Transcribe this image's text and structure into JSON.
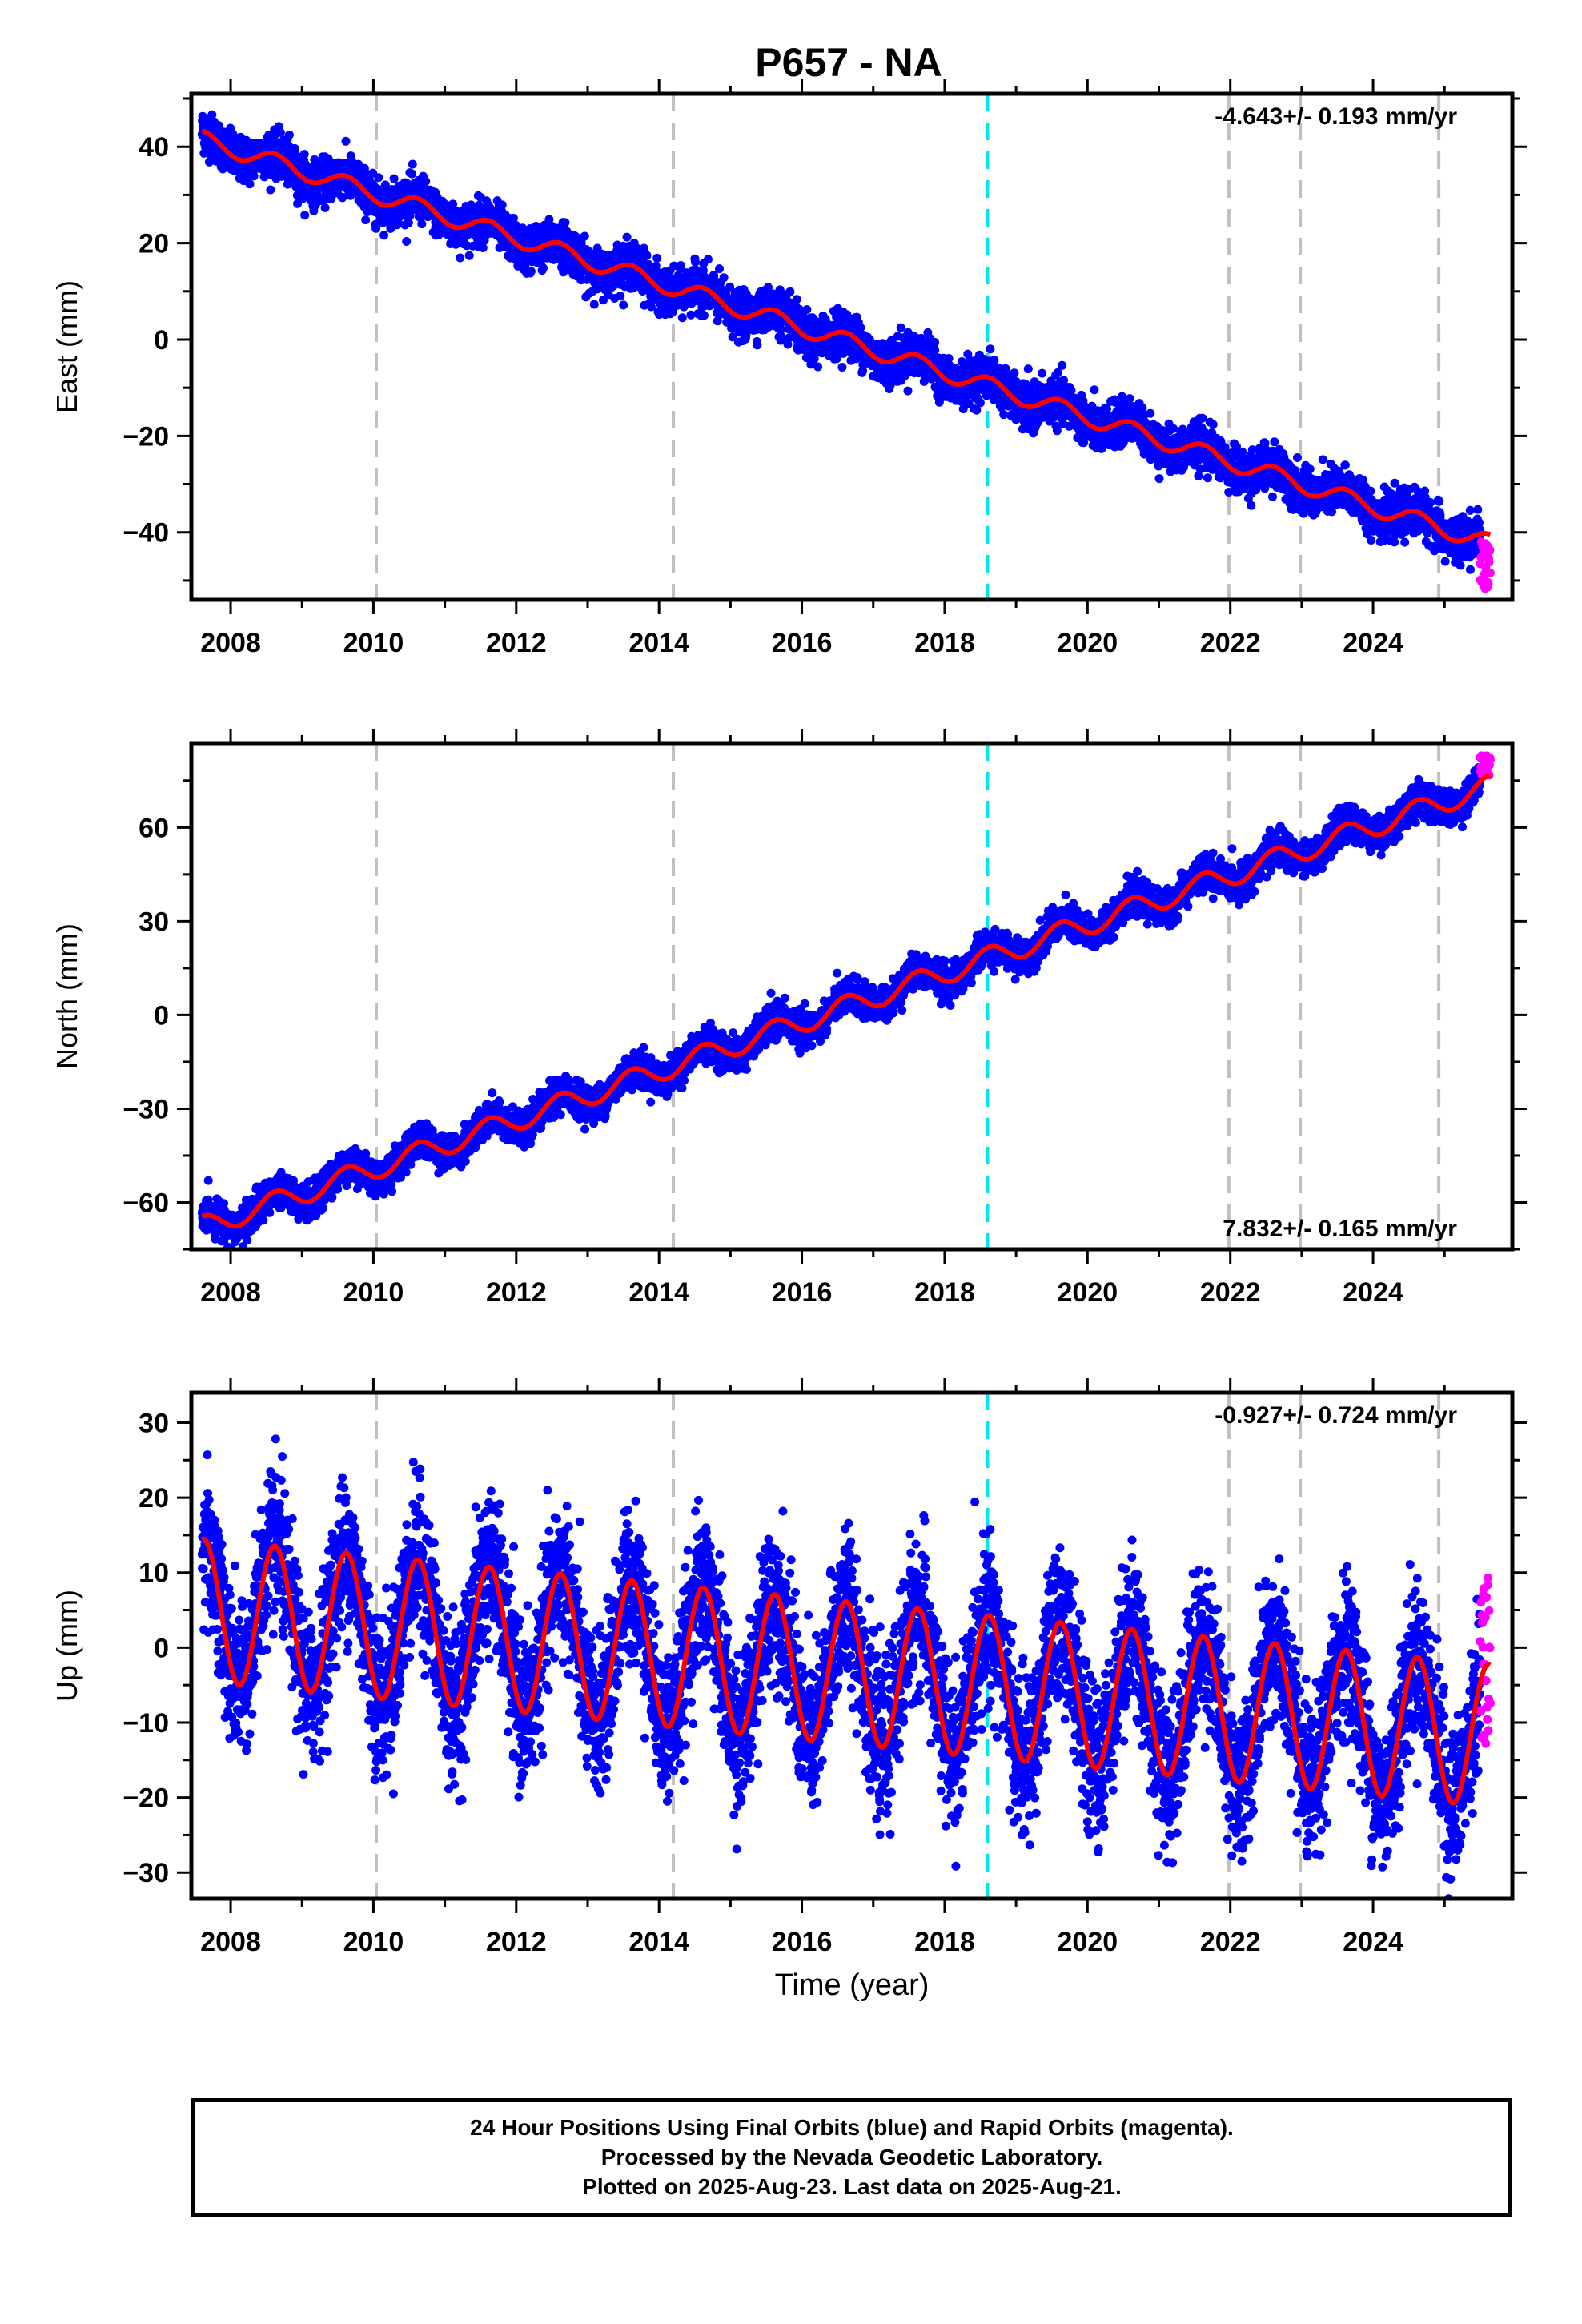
{
  "chart_data": [
    {
      "type": "scatter",
      "title": "P657 - NA",
      "ylabel": "East (mm)",
      "xlim": [
        2007.45,
        2025.95
      ],
      "ylim": [
        -54,
        51
      ],
      "yticks": [
        -40,
        -20,
        0,
        20,
        40
      ],
      "xticks": [
        2008,
        2010,
        2012,
        2014,
        2016,
        2018,
        2020,
        2022,
        2024
      ],
      "rate_label": "-4.643+/- 0.193 mm/yr",
      "rate_label_position": "top-right",
      "grid": false,
      "vertical_markers": [
        {
          "x": 2010.04,
          "style": "gray-dashed"
        },
        {
          "x": 2014.2,
          "style": "gray-dashed"
        },
        {
          "x": 2018.6,
          "style": "cyan-dashed"
        },
        {
          "x": 2021.98,
          "style": "gray-dashed"
        },
        {
          "x": 2022.98,
          "style": "gray-dashed"
        },
        {
          "x": 2024.92,
          "style": "gray-dashed"
        }
      ],
      "series": [
        {
          "name": "Final Orbits",
          "color": "#0000ff",
          "x_range": [
            2007.6,
            2025.5
          ],
          "trend": {
            "ref_x": 2007.6,
            "ref_y": 41.5,
            "slope": -4.643,
            "amplitude": 1.8,
            "scatter": 2.2
          }
        },
        {
          "name": "Rapid Orbits",
          "color": "#ff00ff",
          "x_range": [
            2025.5,
            2025.64
          ],
          "y_range": [
            -52,
            -42
          ]
        },
        {
          "name": "Model",
          "color": "#ff0000",
          "x_range": [
            2007.6,
            2025.64
          ]
        }
      ]
    },
    {
      "type": "scatter",
      "ylabel": "North (mm)",
      "xlim": [
        2007.45,
        2025.95
      ],
      "ylim": [
        -75,
        87
      ],
      "yticks": [
        -60,
        -30,
        0,
        30,
        60
      ],
      "xticks": [
        2008,
        2010,
        2012,
        2014,
        2016,
        2018,
        2020,
        2022,
        2024
      ],
      "rate_label": "7.832+/- 0.165 mm/yr",
      "rate_label_position": "bottom-right",
      "grid": false,
      "vertical_markers": [
        {
          "x": 2010.04,
          "style": "gray-dashed"
        },
        {
          "x": 2014.2,
          "style": "gray-dashed"
        },
        {
          "x": 2018.6,
          "style": "cyan-dashed"
        },
        {
          "x": 2021.98,
          "style": "gray-dashed"
        },
        {
          "x": 2022.98,
          "style": "gray-dashed"
        },
        {
          "x": 2024.92,
          "style": "gray-dashed"
        }
      ],
      "series": [
        {
          "name": "Final Orbits",
          "color": "#0000ff",
          "x_range": [
            2007.6,
            2025.5
          ],
          "trend": {
            "ref_x": 2007.6,
            "ref_y": -68,
            "slope": 7.832,
            "amplitude": 3.5,
            "scatter": 2.6
          }
        },
        {
          "name": "Rapid Orbits",
          "color": "#ff00ff",
          "x_range": [
            2025.5,
            2025.64
          ],
          "y_range": [
            76,
            83
          ]
        },
        {
          "name": "Model",
          "color": "#ff0000",
          "x_range": [
            2007.6,
            2025.64
          ]
        }
      ]
    },
    {
      "type": "scatter",
      "ylabel": "Up (mm)",
      "xlabel": "Time (year)",
      "xlim": [
        2007.45,
        2025.95
      ],
      "ylim": [
        -33.5,
        34
      ],
      "yticks": [
        -30,
        -20,
        -10,
        0,
        10,
        20,
        30
      ],
      "xticks": [
        2008,
        2010,
        2012,
        2014,
        2016,
        2018,
        2020,
        2022,
        2024
      ],
      "rate_label": "-0.927+/- 0.724 mm/yr",
      "rate_label_position": "top-right",
      "grid": false,
      "vertical_markers": [
        {
          "x": 2010.04,
          "style": "gray-dashed"
        },
        {
          "x": 2014.2,
          "style": "gray-dashed"
        },
        {
          "x": 2018.6,
          "style": "cyan-dashed"
        },
        {
          "x": 2021.98,
          "style": "gray-dashed"
        },
        {
          "x": 2022.98,
          "style": "gray-dashed"
        },
        {
          "x": 2024.92,
          "style": "gray-dashed"
        }
      ],
      "series": [
        {
          "name": "Final Orbits",
          "color": "#0000ff",
          "x_range": [
            2007.6,
            2025.5
          ],
          "trend": {
            "ref_x": 2007.6,
            "ref_y": 5,
            "slope": -0.927,
            "amplitude": 9.5,
            "scatter": 5.0
          }
        },
        {
          "name": "Rapid Orbits",
          "color": "#ff00ff",
          "x_range": [
            2025.5,
            2025.64
          ],
          "y_range": [
            -13,
            10
          ]
        },
        {
          "name": "Model",
          "color": "#ff0000",
          "x_range": [
            2007.6,
            2025.64
          ]
        }
      ]
    }
  ],
  "footer": {
    "line1": "24 Hour Positions Using Final Orbits (blue) and Rapid Orbits (magenta).",
    "line2": "Processed by the Nevada Geodetic Laboratory.",
    "line3": "Plotted on 2025-Aug-23. Last data on 2025-Aug-21."
  }
}
